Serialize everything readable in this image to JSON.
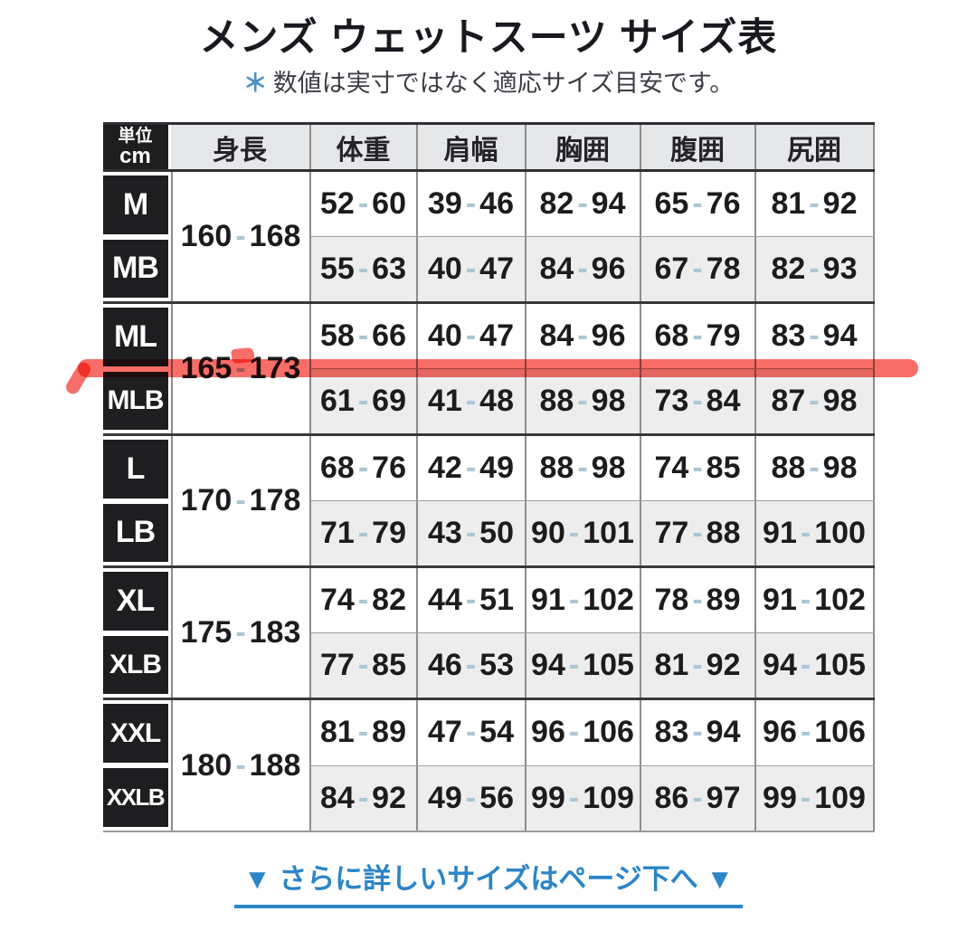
{
  "page": {
    "title": "メンズ ウェットスーツ サイズ表",
    "note_mark": "＊",
    "note": "数値は実寸ではなく適応サイズ目安です。",
    "footer_link": "▼ さらに詳しいサイズはページ下へ ▼"
  },
  "colors": {
    "accent_blue": "#2b85c8",
    "note_asterisk_blue": "#4a8ec5",
    "marker_red": "#f7605a",
    "label_black": "#1e1e21",
    "header_bg": "#e5e7e9",
    "alt_row_bg": "#ededee",
    "range_dash": "#a9c7d6"
  },
  "chart_data": {
    "type": "table",
    "unit_header": {
      "line1": "単位",
      "line2": "cm"
    },
    "columns": [
      "身長",
      "体重",
      "肩幅",
      "胸囲",
      "腹囲",
      "尻囲"
    ],
    "row_groups": [
      {
        "height": "160-168",
        "rows": [
          {
            "size": "M",
            "weight": "52-60",
            "shoulder": "39-46",
            "chest": "82-94",
            "belly": "65-76",
            "hip": "81-92"
          },
          {
            "size": "MB",
            "weight": "55-63",
            "shoulder": "40-47",
            "chest": "84-96",
            "belly": "67-78",
            "hip": "82-93"
          }
        ]
      },
      {
        "height": "165-173",
        "rows": [
          {
            "size": "ML",
            "weight": "58-66",
            "shoulder": "40-47",
            "chest": "84-96",
            "belly": "68-79",
            "hip": "83-94"
          },
          {
            "size": "MLB",
            "weight": "61-69",
            "shoulder": "41-48",
            "chest": "88-98",
            "belly": "73-84",
            "hip": "87-98"
          }
        ]
      },
      {
        "height": "170-178",
        "rows": [
          {
            "size": "L",
            "weight": "68-76",
            "shoulder": "42-49",
            "chest": "88-98",
            "belly": "74-85",
            "hip": "88-98"
          },
          {
            "size": "LB",
            "weight": "71-79",
            "shoulder": "43-50",
            "chest": "90-101",
            "belly": "77-88",
            "hip": "91-100"
          }
        ]
      },
      {
        "height": "175-183",
        "rows": [
          {
            "size": "XL",
            "weight": "74-82",
            "shoulder": "44-51",
            "chest": "91-102",
            "belly": "78-89",
            "hip": "91-102"
          },
          {
            "size": "XLB",
            "weight": "77-85",
            "shoulder": "46-53",
            "chest": "94-105",
            "belly": "81-92",
            "hip": "94-105"
          }
        ]
      },
      {
        "height": "180-188",
        "rows": [
          {
            "size": "XXL",
            "weight": "81-89",
            "shoulder": "47-54",
            "chest": "96-106",
            "belly": "83-94",
            "hip": "96-106"
          },
          {
            "size": "XXLB",
            "weight": "84-92",
            "shoulder": "49-56",
            "chest": "99-109",
            "belly": "86-97",
            "hip": "99-109"
          }
        ]
      }
    ],
    "highlight_marker": {
      "color": "#f7605a",
      "note": "hand-drawn red marker line across the ML / 165-173 row"
    }
  }
}
